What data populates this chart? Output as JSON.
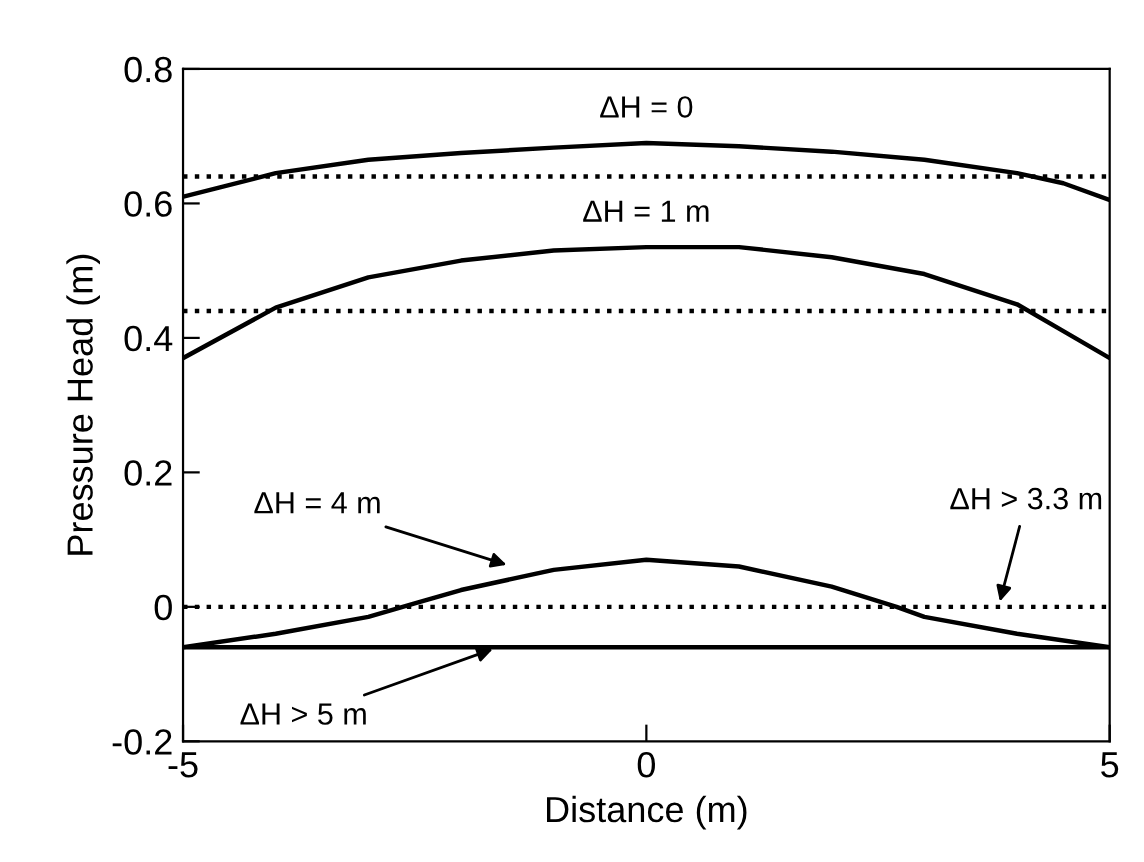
{
  "chart_data": {
    "type": "line",
    "xlabel": "Distance (m)",
    "ylabel": "Pressure Head (m)",
    "xlim": [
      -5,
      5
    ],
    "xticks": [
      -5,
      0,
      5
    ],
    "ylim": [
      -0.2,
      0.8
    ],
    "yticks": [
      -0.2,
      0,
      0.2,
      0.4,
      0.6,
      0.8
    ],
    "grid": false,
    "marker": "none",
    "series": [
      {
        "color": "#000000",
        "line_style": "dotted",
        "x": [
          -5,
          5
        ],
        "values": [
          0.64,
          0.64
        ]
      },
      {
        "color": "#000000",
        "line_style": "dotted",
        "x": [
          -5,
          5
        ],
        "values": [
          0.44,
          0.44
        ]
      },
      {
        "color": "#000000",
        "line_style": "dotted",
        "x": [
          -5,
          5
        ],
        "values": [
          0,
          0
        ]
      },
      {
        "color": "#000000",
        "line_style": "solid",
        "x": [
          -5,
          -4,
          -3,
          -2,
          -1,
          0,
          1,
          2,
          3,
          4,
          4.5,
          5
        ],
        "values": [
          0.61,
          0.645,
          0.665,
          0.675,
          0.683,
          0.69,
          0.685,
          0.677,
          0.665,
          0.645,
          0.63,
          0.605
        ]
      },
      {
        "color": "#000000",
        "line_style": "solid",
        "x": [
          -5,
          -4,
          -3,
          -2,
          -1,
          0,
          1,
          2,
          3,
          4,
          4.5,
          5
        ],
        "values": [
          0.37,
          0.445,
          0.49,
          0.515,
          0.53,
          0.535,
          0.535,
          0.52,
          0.495,
          0.45,
          0.41,
          0.37
        ]
      },
      {
        "color": "#000000",
        "line_style": "solid",
        "x": [
          -5,
          -4,
          -3,
          -2.5,
          -2,
          -1,
          0,
          1,
          2,
          2.7,
          3,
          4,
          5
        ],
        "values": [
          -0.06,
          -0.04,
          -0.015,
          0.005,
          0.025,
          0.055,
          0.07,
          0.06,
          0.03,
          0,
          -0.015,
          -0.04,
          -0.06
        ]
      },
      {
        "color": "#000000",
        "line_style": "solid",
        "x": [
          -5,
          5
        ],
        "values": [
          -0.06,
          -0.06
        ]
      }
    ],
    "annotations": [
      {
        "text": "ΔH = 0",
        "x": 0,
        "y": 0.69
      },
      {
        "text": "ΔH = 1 m",
        "x": 0,
        "y": 0.535
      },
      {
        "text": "ΔH = 4 m",
        "x": -1.45,
        "y": 0.06
      },
      {
        "text": "ΔH > 3.3 m",
        "x": 3.8,
        "y": 0
      },
      {
        "text": "ΔH > 5 m",
        "x": -1.6,
        "y": -0.06
      }
    ]
  }
}
